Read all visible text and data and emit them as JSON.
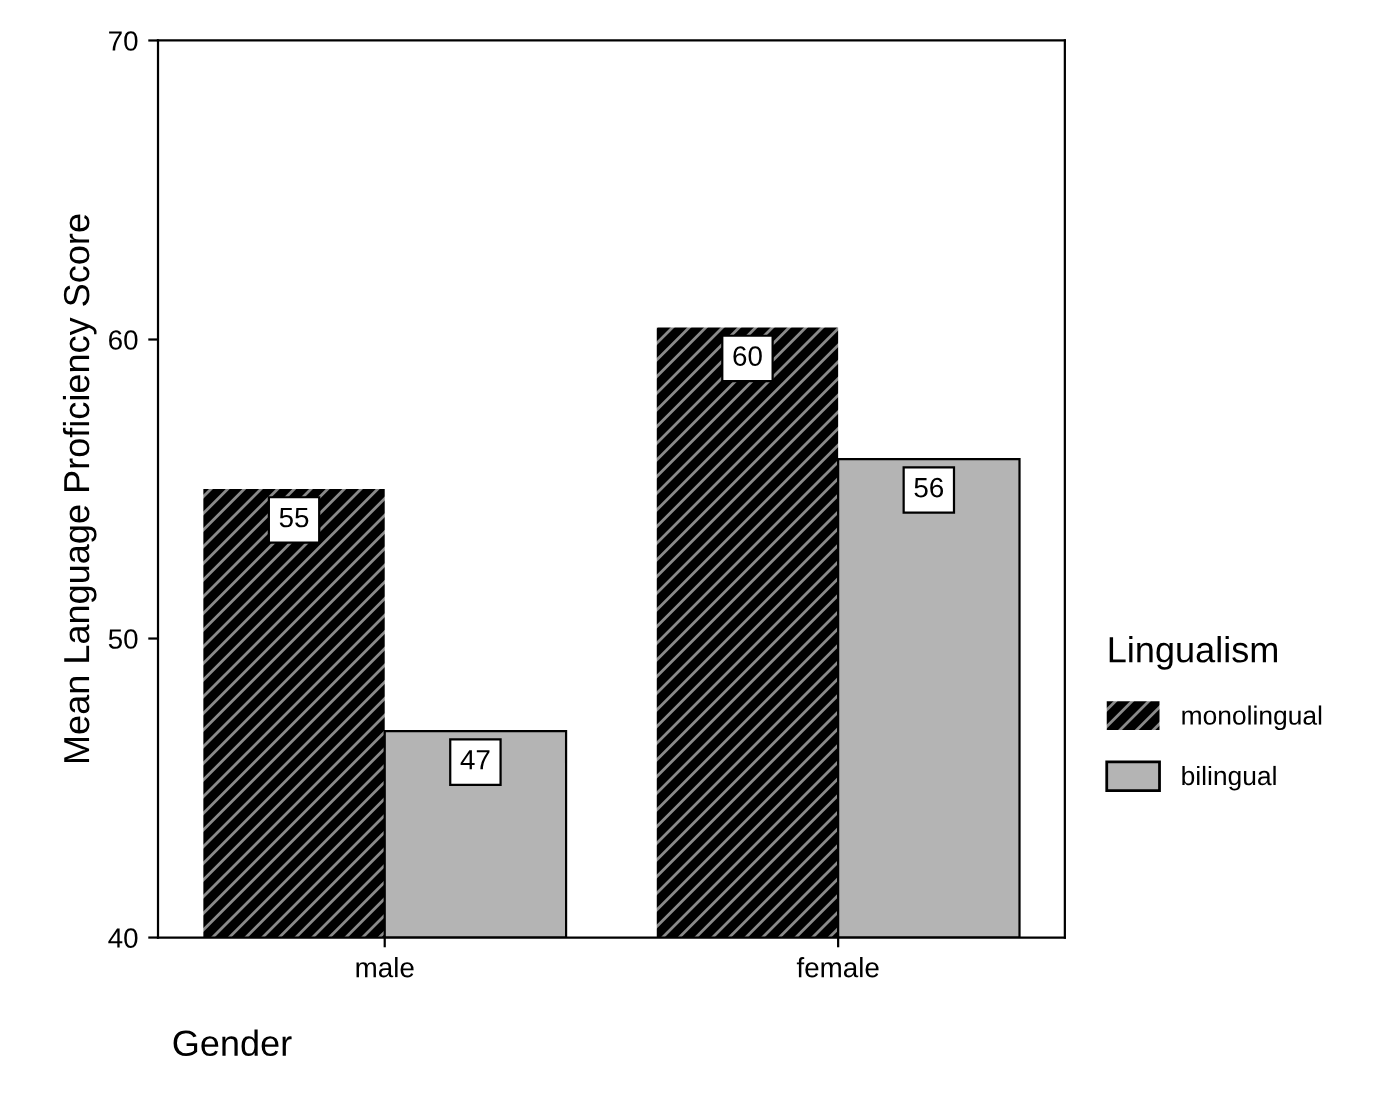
{
  "chart_data": {
    "type": "bar",
    "xlabel": "Gender",
    "ylabel": "Mean Language Proficiency Score",
    "legend_title": "Lingualism",
    "categories": [
      "male",
      "female"
    ],
    "series": [
      {
        "name": "monolingual",
        "color": "#000000",
        "values": [
          55.0,
          60.4
        ],
        "value_labels": [
          "55",
          "60"
        ]
      },
      {
        "name": "bilingual",
        "color": "#b4b4b4",
        "values": [
          46.9,
          56.0
        ],
        "value_labels": [
          "47",
          "56"
        ]
      }
    ],
    "ylim": [
      40,
      70
    ],
    "yticks": [
      40,
      50,
      60,
      70
    ],
    "grid": false,
    "legend": "right"
  }
}
